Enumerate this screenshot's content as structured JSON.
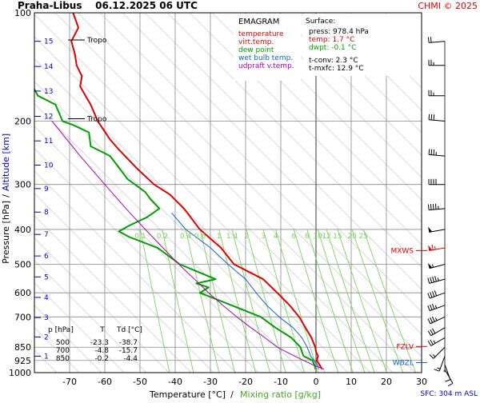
{
  "header": {
    "title": "Praha-Libus    06.12.2025 06 UTC",
    "credit": "CHMI © 2025"
  },
  "legend_box": {
    "heading": "EMAGRAM",
    "entries": [
      {
        "label": "temperature",
        "color": "#e00000"
      },
      {
        "label": "virt.temp.",
        "color": "#e00000"
      },
      {
        "label": "dew point",
        "color": "#00a000"
      },
      {
        "label": "wet bulb temp.",
        "color": "#1060d0"
      },
      {
        "label": "udpraft v.temp.",
        "color": "#b000b0"
      }
    ]
  },
  "surface_box": {
    "heading": "Surface:",
    "lines": [
      {
        "text": "press: 978.4 hPa",
        "color": "#000000"
      },
      {
        "text": "temp: 1.7 °C",
        "color": "#e00000"
      },
      {
        "text": "dwpt: -0.1 °C",
        "color": "#00a000"
      },
      {
        "text": "t-conv: 2.3 °C",
        "color": "#000000"
      },
      {
        "text": "t-mxfc: 12.9 °C",
        "color": "#000000"
      }
    ]
  },
  "level_table": {
    "headers": [
      "p [hPa]",
      "T",
      "Td [°C]"
    ],
    "rows": [
      [
        "500",
        "-23.3",
        "-38.7"
      ],
      [
        "700",
        "-4.8",
        "-15.7"
      ],
      [
        "850",
        "-0.2",
        "-4.4"
      ]
    ]
  },
  "markers": {
    "mxws": "MXWS",
    "fzlv": "FZLV",
    "wbzl": "WBZL",
    "sfc": "SFC: 304 m ASL",
    "tropo": "Tropo"
  },
  "colors": {
    "temperature": "#e00000",
    "dew_point": "#00a000",
    "wet_bulb": "#1060d0",
    "parcel": "#b000b0",
    "mixing": "#7ad35a",
    "altitude": "#0000cc",
    "markers": "#e00000",
    "wbzl": "#1060d0"
  },
  "chart_data": {
    "type": "line",
    "xlabel": "Temperature [°C]",
    "xlabel_extra": "Mixing ratio [g/kg]",
    "ylabel": "Pressure [hPa]",
    "ylabel_extra": "Altitude [km]",
    "xlim": [
      -80,
      30
    ],
    "ylim": [
      1000,
      100
    ],
    "y_scale": "log",
    "x_ticks": [
      -70,
      -60,
      -50,
      -40,
      -30,
      -20,
      -10,
      0,
      10,
      20,
      30
    ],
    "p_ticks": [
      100,
      200,
      300,
      400,
      500,
      600,
      700,
      850,
      925,
      1000
    ],
    "altitude_ticks": [
      {
        "km": 1,
        "p": 900
      },
      {
        "km": 2,
        "p": 796
      },
      {
        "km": 3,
        "p": 703
      },
      {
        "km": 4,
        "p": 618
      },
      {
        "km": 5,
        "p": 542
      },
      {
        "km": 6,
        "p": 474
      },
      {
        "km": 7,
        "p": 413
      },
      {
        "km": 8,
        "p": 358
      },
      {
        "km": 9,
        "p": 308
      },
      {
        "km": 10,
        "p": 265
      },
      {
        "km": 11,
        "p": 227
      },
      {
        "km": 12,
        "p": 194
      },
      {
        "km": 13,
        "p": 165
      },
      {
        "km": 14,
        "p": 141
      },
      {
        "km": 15,
        "p": 120
      }
    ],
    "mixing_ratio_labels": [
      "0.1",
      "0.2",
      "0.4",
      "0.6",
      "1",
      "1.4",
      "2",
      "3",
      "4",
      "6",
      "8",
      "10",
      "12",
      "15",
      "20",
      "25"
    ],
    "tropopause_levels_hpa": [
      119,
      197
    ],
    "markers_hpa": {
      "mxws": 458,
      "fzlv": 846,
      "wbzl": 938
    },
    "series": [
      {
        "name": "temperature",
        "key": "temperature",
        "points": [
          [
            1.7,
            978
          ],
          [
            1.0,
            950
          ],
          [
            0.2,
            925
          ],
          [
            0.6,
            900
          ],
          [
            0.0,
            875
          ],
          [
            -0.2,
            850
          ],
          [
            -1.3,
            800
          ],
          [
            -3.0,
            750
          ],
          [
            -4.8,
            700
          ],
          [
            -7.5,
            650
          ],
          [
            -11.0,
            600
          ],
          [
            -15.0,
            550
          ],
          [
            -23.3,
            500
          ],
          [
            -27.0,
            450
          ],
          [
            -33.0,
            400
          ],
          [
            -37.5,
            350
          ],
          [
            -41.5,
            320
          ],
          [
            -46.0,
            300
          ],
          [
            -51.0,
            270
          ],
          [
            -56.0,
            240
          ],
          [
            -58.5,
            225
          ],
          [
            -62.0,
            200
          ],
          [
            -64.0,
            180
          ],
          [
            -65.5,
            170
          ],
          [
            -67.0,
            160
          ],
          [
            -66.5,
            150
          ],
          [
            -68.0,
            140
          ],
          [
            -68.5,
            130
          ],
          [
            -69.5,
            120
          ],
          [
            -67.5,
            110
          ],
          [
            -69.0,
            100
          ]
        ]
      },
      {
        "name": "dew point",
        "key": "dew_point",
        "points": [
          [
            -0.1,
            978
          ],
          [
            -0.5,
            950
          ],
          [
            -1.0,
            925
          ],
          [
            -3.5,
            900
          ],
          [
            -4.0,
            875
          ],
          [
            -4.4,
            850
          ],
          [
            -7.0,
            800
          ],
          [
            -11.5,
            750
          ],
          [
            -15.7,
            700
          ],
          [
            -24.0,
            650
          ],
          [
            -33.0,
            600
          ],
          [
            -30.5,
            580
          ],
          [
            -34.0,
            565
          ],
          [
            -28.5,
            550
          ],
          [
            -38.7,
            500
          ],
          [
            -45.0,
            450
          ],
          [
            -53.0,
            420
          ],
          [
            -56.0,
            405
          ],
          [
            -53.0,
            390
          ],
          [
            -48.0,
            370
          ],
          [
            -44.5,
            350
          ],
          [
            -47.0,
            330
          ],
          [
            -48.5,
            315
          ],
          [
            -53.5,
            290
          ],
          [
            -58.5,
            250
          ],
          [
            -64.0,
            235
          ],
          [
            -64.5,
            215
          ],
          [
            -69.0,
            205
          ],
          [
            -72.0,
            200
          ],
          [
            -74.0,
            180
          ],
          [
            -79.0,
            170
          ],
          [
            -82.0,
            150
          ]
        ]
      },
      {
        "name": "wet bulb temp.",
        "key": "wet_bulb",
        "points": [
          [
            0.8,
            978
          ],
          [
            0.4,
            950
          ],
          [
            -0.5,
            925
          ],
          [
            -1.5,
            900
          ],
          [
            -2.0,
            875
          ],
          [
            -2.5,
            850
          ],
          [
            -4.0,
            800
          ],
          [
            -6.5,
            750
          ],
          [
            -10.5,
            700
          ],
          [
            -14.0,
            650
          ],
          [
            -17.0,
            600
          ],
          [
            -20.0,
            550
          ],
          [
            -25.0,
            500
          ],
          [
            -30.0,
            450
          ],
          [
            -37.0,
            400
          ],
          [
            -41.0,
            360
          ]
        ]
      },
      {
        "name": "udpraft v.temp.",
        "key": "parcel",
        "points": [
          [
            2.3,
            978
          ],
          [
            -1.0,
            950
          ],
          [
            -3.5,
            925
          ],
          [
            -6.0,
            900
          ],
          [
            -8.5,
            875
          ],
          [
            -11.0,
            850
          ],
          [
            -14.5,
            800
          ],
          [
            -18.5,
            750
          ],
          [
            -22.5,
            700
          ],
          [
            -26.5,
            650
          ],
          [
            -30.5,
            600
          ],
          [
            -34.5,
            550
          ],
          [
            -39.0,
            500
          ],
          [
            -43.5,
            450
          ],
          [
            -48.5,
            400
          ],
          [
            -54.0,
            350
          ],
          [
            -60.0,
            300
          ],
          [
            -67.0,
            250
          ],
          [
            -75.0,
            200
          ]
        ]
      }
    ],
    "wind_barbs": [
      {
        "p": 980,
        "dir": 150,
        "kt": 10
      },
      {
        "p": 950,
        "dir": 160,
        "kt": 10
      },
      {
        "p": 900,
        "dir": 200,
        "kt": 15
      },
      {
        "p": 850,
        "dir": 225,
        "kt": 15
      },
      {
        "p": 800,
        "dir": 240,
        "kt": 25
      },
      {
        "p": 750,
        "dir": 240,
        "kt": 30
      },
      {
        "p": 700,
        "dir": 245,
        "kt": 35
      },
      {
        "p": 650,
        "dir": 250,
        "kt": 35
      },
      {
        "p": 600,
        "dir": 250,
        "kt": 40
      },
      {
        "p": 550,
        "dir": 255,
        "kt": 45
      },
      {
        "p": 500,
        "dir": 255,
        "kt": 55
      },
      {
        "p": 450,
        "dir": 260,
        "kt": 65
      },
      {
        "p": 400,
        "dir": 260,
        "kt": 50
      },
      {
        "p": 350,
        "dir": 265,
        "kt": 45
      },
      {
        "p": 300,
        "dir": 270,
        "kt": 40
      },
      {
        "p": 250,
        "dir": 275,
        "kt": 35
      },
      {
        "p": 200,
        "dir": 275,
        "kt": 30
      },
      {
        "p": 170,
        "dir": 270,
        "kt": 25
      },
      {
        "p": 140,
        "dir": 270,
        "kt": 25
      },
      {
        "p": 120,
        "dir": 265,
        "kt": 20
      }
    ]
  }
}
